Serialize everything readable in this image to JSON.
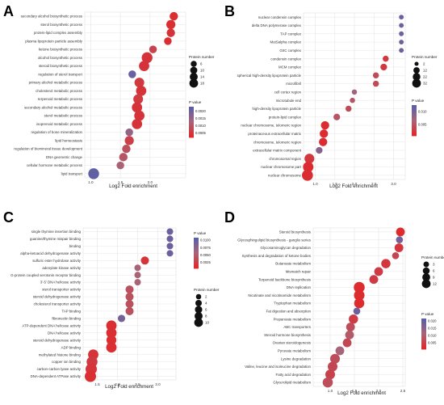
{
  "panels": [
    {
      "letter": "A",
      "chart_data": {
        "type": "scatter",
        "xlabel": "Log2 Fold enrichment",
        "xlim": [
          0.9,
          2.6
        ],
        "xticks": [
          "1.0",
          "1.5",
          "2.0"
        ],
        "xtick_values": [
          1.0,
          1.5,
          2.0
        ],
        "categories": [
          "secondary alcohol biosynthetic process",
          "sterol biosynthetic process",
          "protein-lipid complex assembly",
          "plasma lipoprotein particle assembly",
          "ketone biosynthetic process",
          "alcohol biosynthetic process",
          "steroid biosynthetic process",
          "regulation of sterol transport",
          "primary alcohol metabolic process",
          "cholesterol metabolic process",
          "terpenoid metabolic process",
          "secondary alcohol metabolic process",
          "sterol metabolic process",
          "isoprenoid metabolic process",
          "regulation of bone mineralization",
          "lipid homeostasis",
          "regulation of biomineral tissue development",
          "DNA geometric change",
          "cellular hormone metabolic process",
          "lipid transport"
        ],
        "x": [
          2.4,
          2.35,
          2.35,
          2.3,
          2.05,
          1.95,
          1.9,
          1.7,
          1.82,
          1.85,
          1.8,
          1.78,
          1.82,
          1.78,
          1.65,
          1.65,
          1.6,
          1.55,
          1.5,
          1.05
        ],
        "size": [
          8,
          10,
          8,
          6,
          6,
          16,
          14,
          6,
          12,
          14,
          12,
          14,
          14,
          14,
          6,
          10,
          8,
          8,
          6,
          16
        ],
        "pvalue": [
          0.0003,
          0.0003,
          0.0004,
          0.0003,
          0.0007,
          0.0004,
          0.0004,
          0.0021,
          0.0005,
          0.0004,
          0.0005,
          0.0004,
          0.0004,
          0.0004,
          0.0015,
          0.0006,
          0.0009,
          0.001,
          0.0012,
          0.0022
        ],
        "size_legend": {
          "title": "Protein number",
          "values": [
            6,
            10,
            14,
            18
          ]
        },
        "color_legend": {
          "title": "P value",
          "ticks": [
            "0.0020",
            "0.0015",
            "0.0010",
            "0.0005"
          ],
          "tick_values": [
            0.002,
            0.0015,
            0.001,
            0.0005
          ],
          "range": [
            0.0002,
            0.0023
          ]
        }
      }
    },
    {
      "letter": "B",
      "chart_data": {
        "type": "scatter",
        "xlabel": "Log2 Fold enrichment",
        "xlim": [
          0.7,
          3.3
        ],
        "xticks": [
          "1.0",
          "1.5",
          "2.0",
          "2.5",
          "3.0"
        ],
        "xtick_values": [
          1.0,
          1.5,
          2.0,
          2.5,
          3.0
        ],
        "categories": [
          "nuclear condensin complex",
          "delta DNA polymerase complex",
          "TAP complex",
          "MutSalpha complex",
          "GIIC complex",
          "condensin complex",
          "MCM complex",
          "spherical high-density lipoprotein particle",
          "microfibril",
          "cell cortex region",
          "microtubule end",
          "high-density lipoprotein particle",
          "protein-lipid complex",
          "nuclear chromosome, telomeric region",
          "proteinaceous extracellular matrix",
          "chromosome, telomeric region",
          "extracellular matrix component",
          "chromosomal region",
          "nuclear chromosome part",
          "nuclear chromosome"
        ],
        "x": [
          3.2,
          3.2,
          3.2,
          3.2,
          3.2,
          2.8,
          2.75,
          2.55,
          2.55,
          2.0,
          1.95,
          1.85,
          1.55,
          1.25,
          1.22,
          1.2,
          1.1,
          0.85,
          0.82,
          0.8
        ],
        "size": [
          2,
          2,
          2,
          2,
          2,
          5,
          7,
          5,
          5,
          3,
          3,
          5,
          7,
          14,
          14,
          14,
          7,
          22,
          26,
          30
        ],
        "pvalue": [
          0.011,
          0.011,
          0.011,
          0.011,
          0.011,
          0.002,
          0.002,
          0.004,
          0.004,
          0.007,
          0.005,
          0.004,
          0.005,
          0.001,
          0.001,
          0.001,
          0.009,
          0.002,
          0.001,
          0.001
        ],
        "size_legend": {
          "title": "Protein number",
          "values": [
            2,
            12,
            22,
            32
          ]
        },
        "color_legend": {
          "title": "P value",
          "ticks": [
            "0.010",
            "0.005"
          ],
          "tick_values": [
            0.01,
            0.005
          ],
          "range": [
            0.0005,
            0.0125
          ]
        }
      }
    },
    {
      "letter": "C",
      "chart_data": {
        "type": "scatter",
        "xlabel": "Log2 Fold enrichment",
        "xlim": [
          1.15,
          3.45
        ],
        "xticks": [
          "1.5",
          "2.0",
          "2.5",
          "3.0"
        ],
        "xtick_values": [
          1.5,
          2.0,
          2.5,
          3.0
        ],
        "categories": [
          "single thymine insertion binding",
          "guanine/thymine mispair binding",
          "binding",
          "alpha-ketoacid dehydrogenase activity",
          "sulfuric ester hydrolase activity",
          "adenylate kinase activity",
          "G-protein coupled serotonin receptor binding",
          "3'-5' DNA helicase activity",
          "sterol transporter activity",
          "steroid dehydrogenase activity",
          "cholesterol transporter activity",
          "TAP binding",
          "fibronectin binding",
          "ATP-dependent DNA helicase activity",
          "DNA helicase activity",
          "steroid dehydrogenase activity",
          "ADP binding",
          "methylated histone binding",
          "copper ion binding",
          "carbon-carbon lyase activity",
          "DNA-dependent ATPase activity"
        ],
        "x": [
          3.3,
          3.3,
          3.3,
          3.3,
          2.68,
          2.5,
          2.5,
          2.5,
          2.3,
          2.3,
          2.3,
          2.3,
          2.1,
          1.85,
          1.85,
          1.85,
          1.85,
          1.4,
          1.37,
          1.35,
          1.33
        ],
        "size": [
          2,
          2,
          2,
          2,
          4,
          2,
          2,
          2,
          4,
          4,
          4,
          4,
          3,
          8,
          8,
          7,
          8,
          8,
          9,
          10,
          10
        ],
        "pvalue": [
          0.0095,
          0.0095,
          0.0095,
          0.0095,
          0.0015,
          0.0055,
          0.0055,
          0.0055,
          0.004,
          0.004,
          0.004,
          0.004,
          0.009,
          0.001,
          0.001,
          0.001,
          0.001,
          0.0015,
          0.002,
          0.0015,
          0.001
        ],
        "size_legend": {
          "title": "Protein number",
          "values": [
            2,
            4,
            6,
            8,
            10
          ]
        },
        "color_legend": {
          "title": "P value",
          "ticks": [
            "0.0100",
            "0.0075",
            "0.0050",
            "0.0025"
          ],
          "tick_values": [
            0.01,
            0.0075,
            0.005,
            0.0025
          ],
          "range": [
            0.0005,
            0.0108
          ]
        }
      }
    },
    {
      "letter": "D",
      "chart_data": {
        "type": "scatter",
        "xlabel": "Log2 Fold enrichment",
        "xlim": [
          0.65,
          2.55
        ],
        "xticks": [
          "1.0",
          "1.5",
          "2.0",
          "2.5"
        ],
        "xtick_values": [
          1.0,
          1.5,
          2.0,
          2.5
        ],
        "categories": [
          "Steroid biosynthesis",
          "Glycosphingolipid biosynthesis - ganglio series",
          "Glycosaminoglycan degradation",
          "Synthesis and degradation of ketone bodies",
          "Butanoate metabolism",
          "Mismatch repair",
          "Terpenoid backbone biosynthesis",
          "DNA replication",
          "Nicotinate and nicotinamide metabolism",
          "Tryptophan metabolism",
          "Fat digestion and absorption",
          "Propanoate metabolism",
          "ABC transporters",
          "Steroid hormone biosynthesis",
          "Ovarian steroidogenesis",
          "Pyruvate metabolism",
          "Lysine degradation",
          "Valine, leucine and isoleucine degradation",
          "Fatty acid degradation",
          "Glycerolipid metabolism"
        ],
        "x": [
          2.45,
          2.43,
          2.42,
          2.35,
          2.15,
          2.0,
          1.9,
          1.6,
          1.6,
          1.6,
          1.55,
          1.48,
          1.42,
          1.4,
          1.35,
          1.2,
          1.1,
          1.05,
          1.0,
          0.95
        ],
        "size": [
          6,
          3,
          6,
          3,
          7,
          6,
          6,
          11,
          10,
          9,
          3,
          7,
          6,
          6,
          6,
          6,
          8,
          8,
          8,
          9
        ],
        "pvalue": [
          0.001,
          0.018,
          0.003,
          0.006,
          0.003,
          0.004,
          0.004,
          0.001,
          0.001,
          0.001,
          0.019,
          0.004,
          0.007,
          0.009,
          0.006,
          0.011,
          0.007,
          0.006,
          0.005,
          0.007
        ],
        "size_legend": {
          "title": "Protein number",
          "values": [
            3,
            6,
            9,
            12
          ]
        },
        "color_legend": {
          "title": "P value",
          "ticks": [
            "0.020",
            "0.015",
            "0.010",
            "0.005"
          ],
          "tick_values": [
            0.02,
            0.015,
            0.01,
            0.005
          ],
          "range": [
            0.0005,
            0.0215
          ]
        }
      }
    }
  ],
  "colors": {
    "high_p": "#5a5fa8",
    "mid_p": "#a86478",
    "low_p": "#e0282a",
    "grid": "#e5e5e5",
    "panel_letter": "#111111"
  }
}
